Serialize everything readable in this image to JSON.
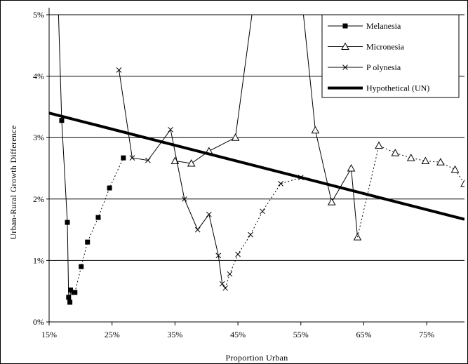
{
  "chart_data": {
    "type": "line",
    "xlabel": "Proportion Urban",
    "ylabel": "Urban-Rural Growth Difference",
    "xlim": [
      0.15,
      0.81
    ],
    "ylim": [
      0,
      0.05
    ],
    "x_ticks": [
      {
        "value": 0.15,
        "label": "15%"
      },
      {
        "value": 0.25,
        "label": "25%"
      },
      {
        "value": 0.35,
        "label": "35%"
      },
      {
        "value": 0.45,
        "label": "45%"
      },
      {
        "value": 0.55,
        "label": "55%"
      },
      {
        "value": 0.65,
        "label": "65%"
      },
      {
        "value": 0.75,
        "label": "75%"
      }
    ],
    "y_ticks": [
      {
        "value": 0.0,
        "label": "0%"
      },
      {
        "value": 0.01,
        "label": "1%"
      },
      {
        "value": 0.02,
        "label": "2%"
      },
      {
        "value": 0.03,
        "label": "3%"
      },
      {
        "value": 0.04,
        "label": "4%"
      },
      {
        "value": 0.05,
        "label": "5%"
      }
    ],
    "grid": "horizontal",
    "legend_position": "top-right",
    "series": [
      {
        "name": "Melanesia",
        "marker": "square",
        "color": "#000000",
        "segments": [
          {
            "dash": "solid",
            "points": [
              [
                0.162,
                0.06
              ],
              [
                0.17,
                0.0328
              ],
              [
                0.179,
                0.0162
              ],
              [
                0.181,
                0.004
              ],
              [
                0.183,
                0.0032
              ],
              [
                0.184,
                0.0052
              ],
              [
                0.189,
                0.0048
              ],
              [
                0.191,
                0.0048
              ]
            ]
          },
          {
            "dash": "dotted",
            "points": [
              [
                0.191,
                0.0048
              ],
              [
                0.201,
                0.009
              ],
              [
                0.211,
                0.013
              ],
              [
                0.228,
                0.017
              ],
              [
                0.246,
                0.0218
              ],
              [
                0.268,
                0.0267
              ]
            ]
          }
        ]
      },
      {
        "name": "Micronesia",
        "marker": "triangle",
        "color": "#000000",
        "segments": [
          {
            "dash": "solid",
            "points": [
              [
                0.35,
                0.0262
              ],
              [
                0.376,
                0.0258
              ],
              [
                0.404,
                0.0278
              ],
              [
                0.446,
                0.03
              ],
              [
                0.488,
                0.062
              ]
            ]
          },
          {
            "dash": "solid",
            "points": [
              [
                0.542,
                0.062
              ],
              [
                0.573,
                0.0312
              ],
              [
                0.599,
                0.0195
              ],
              [
                0.63,
                0.025
              ],
              [
                0.64,
                0.0138
              ]
            ]
          },
          {
            "dash": "dotted",
            "points": [
              [
                0.64,
                0.0138
              ],
              [
                0.674,
                0.0287
              ],
              [
                0.7,
                0.0275
              ],
              [
                0.725,
                0.0267
              ],
              [
                0.748,
                0.0262
              ],
              [
                0.772,
                0.026
              ],
              [
                0.795,
                0.0248
              ],
              [
                0.81,
                0.0225
              ]
            ]
          }
        ]
      },
      {
        "name": "P olynesia",
        "marker": "cross",
        "color": "#000000",
        "segments": [
          {
            "dash": "solid",
            "points": [
              [
                0.261,
                0.041
              ],
              [
                0.282,
                0.0267
              ],
              [
                0.307,
                0.0263
              ],
              [
                0.343,
                0.0313
              ],
              [
                0.365,
                0.02
              ],
              [
                0.386,
                0.015
              ],
              [
                0.404,
                0.0175
              ],
              [
                0.419,
                0.0108
              ],
              [
                0.425,
                0.0062
              ],
              [
                0.43,
                0.0055
              ]
            ]
          },
          {
            "dash": "dotted",
            "points": [
              [
                0.43,
                0.0055
              ],
              [
                0.437,
                0.0078
              ],
              [
                0.45,
                0.011
              ],
              [
                0.47,
                0.0142
              ],
              [
                0.489,
                0.018
              ],
              [
                0.518,
                0.0225
              ],
              [
                0.55,
                0.0235
              ]
            ]
          }
        ]
      },
      {
        "name": "Hypothetical (UN)",
        "marker": "none",
        "color": "#000000",
        "bold": true,
        "segments": [
          {
            "dash": "solid",
            "points": [
              [
                0.15,
                0.034
              ],
              [
                0.81,
                0.0167
              ]
            ]
          }
        ]
      }
    ]
  }
}
